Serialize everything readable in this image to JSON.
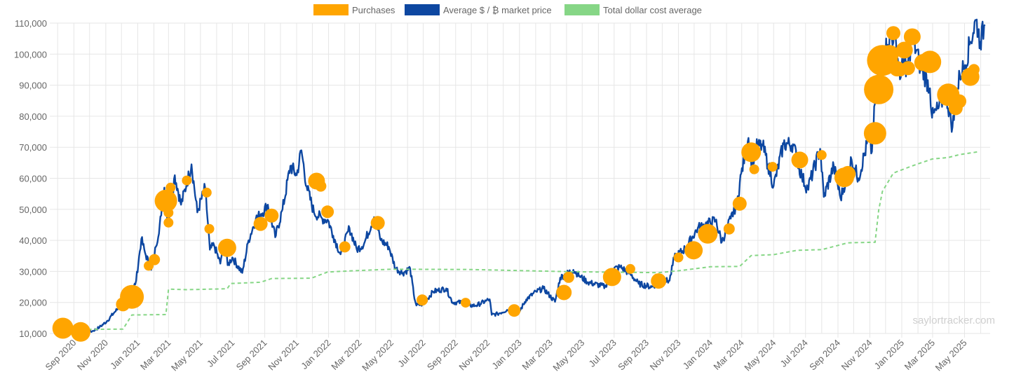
{
  "chart_data": {
    "type": "line",
    "title": "",
    "xlabel": "",
    "ylabel": "",
    "ylim": [
      10000,
      110000
    ],
    "y_ticks": [
      "10,000",
      "20,000",
      "30,000",
      "40,000",
      "50,000",
      "60,000",
      "70,000",
      "80,000",
      "90,000",
      "100,000",
      "110,000"
    ],
    "x_ticks": [
      "Sep 2020",
      "Nov 2020",
      "Jan 2021",
      "Mar 2021",
      "May 2021",
      "Jul 2021",
      "Sep 2021",
      "Nov 2021",
      "Jan 2022",
      "Mar 2022",
      "May 2022",
      "Jul 2022",
      "Sep 2022",
      "Nov 2022",
      "Jan 2023",
      "Mar 2023",
      "May 2023",
      "Jul 2023",
      "Sep 2023",
      "Nov 2023",
      "Jan 2024",
      "Mar 2024",
      "May 2024",
      "Jul 2024",
      "Sep 2024",
      "Nov 2024",
      "Jan 2025",
      "Mar 2025",
      "May 2025"
    ],
    "grid": true,
    "legend_position": "top",
    "watermark": "saylortracker.com",
    "colors": {
      "purchases": "#FFA500",
      "market_price": "#0d47a1",
      "cost_average": "#86d686",
      "grid": "#e6e6e6"
    },
    "legend": [
      {
        "key": "purchases",
        "label": "Purchases"
      },
      {
        "key": "market_price",
        "label": "Average $ / ₿ market price"
      },
      {
        "key": "cost_average",
        "label": "Total dollar cost average"
      }
    ],
    "series": [
      {
        "name": "Average $ / ₿ market price",
        "points": [
          [
            "2020-08-11",
            11500
          ],
          [
            "2020-08-25",
            11600
          ],
          [
            "2020-09-08",
            10300
          ],
          [
            "2020-09-22",
            10500
          ],
          [
            "2020-10-06",
            10700
          ],
          [
            "2020-10-20",
            12000
          ],
          [
            "2020-11-03",
            13900
          ],
          [
            "2020-11-17",
            16700
          ],
          [
            "2020-12-01",
            19200
          ],
          [
            "2020-12-15",
            19400
          ],
          [
            "2020-12-22",
            23500
          ],
          [
            "2020-12-29",
            27000
          ],
          [
            "2021-01-08",
            40500
          ],
          [
            "2021-01-15",
            36000
          ],
          [
            "2021-01-27",
            30500
          ],
          [
            "2021-02-05",
            38000
          ],
          [
            "2021-02-15",
            48000
          ],
          [
            "2021-02-21",
            57000
          ],
          [
            "2021-02-28",
            45500
          ],
          [
            "2021-03-13",
            61000
          ],
          [
            "2021-03-25",
            51500
          ],
          [
            "2021-04-05",
            58500
          ],
          [
            "2021-04-14",
            64500
          ],
          [
            "2021-04-25",
            49000
          ],
          [
            "2021-05-10",
            57000
          ],
          [
            "2021-05-19",
            37000
          ],
          [
            "2021-05-27",
            38500
          ],
          [
            "2021-06-08",
            32500
          ],
          [
            "2021-06-15",
            40000
          ],
          [
            "2021-06-22",
            32000
          ],
          [
            "2021-07-01",
            34500
          ],
          [
            "2021-07-20",
            29500
          ],
          [
            "2021-08-01",
            40000
          ],
          [
            "2021-08-15",
            47000
          ],
          [
            "2021-08-25",
            48500
          ],
          [
            "2021-09-07",
            51500
          ],
          [
            "2021-09-21",
            41000
          ],
          [
            "2021-10-05",
            50000
          ],
          [
            "2021-10-20",
            64000
          ],
          [
            "2021-11-01",
            61000
          ],
          [
            "2021-11-10",
            69000
          ],
          [
            "2021-11-20",
            57500
          ],
          [
            "2021-12-04",
            49000
          ],
          [
            "2021-12-20",
            47000
          ],
          [
            "2021-12-31",
            46500
          ],
          [
            "2022-01-10",
            41500
          ],
          [
            "2022-01-24",
            35500
          ],
          [
            "2022-02-10",
            44000
          ],
          [
            "2022-02-24",
            37000
          ],
          [
            "2022-03-10",
            39000
          ],
          [
            "2022-03-29",
            47500
          ],
          [
            "2022-04-11",
            40000
          ],
          [
            "2022-04-26",
            38000
          ],
          [
            "2022-05-09",
            31000
          ],
          [
            "2022-05-23",
            29500
          ],
          [
            "2022-06-06",
            31000
          ],
          [
            "2022-06-13",
            22500
          ],
          [
            "2022-06-18",
            19000
          ],
          [
            "2022-07-01",
            19500
          ],
          [
            "2022-07-20",
            23500
          ],
          [
            "2022-08-14",
            24500
          ],
          [
            "2022-08-26",
            20000
          ],
          [
            "2022-09-13",
            20000
          ],
          [
            "2022-09-20",
            19000
          ],
          [
            "2022-10-10",
            19000
          ],
          [
            "2022-10-29",
            20500
          ],
          [
            "2022-11-05",
            21000
          ],
          [
            "2022-11-09",
            16000
          ],
          [
            "2022-11-20",
            16300
          ],
          [
            "2022-12-14",
            18000
          ],
          [
            "2022-12-30",
            16500
          ],
          [
            "2023-01-14",
            21000
          ],
          [
            "2023-02-02",
            23500
          ],
          [
            "2023-02-16",
            24500
          ],
          [
            "2023-03-10",
            20200
          ],
          [
            "2023-03-20",
            28000
          ],
          [
            "2023-04-14",
            30500
          ],
          [
            "2023-04-26",
            28500
          ],
          [
            "2023-05-12",
            26500
          ],
          [
            "2023-06-15",
            25000
          ],
          [
            "2023-06-23",
            30500
          ],
          [
            "2023-07-13",
            31400
          ],
          [
            "2023-08-01",
            29200
          ],
          [
            "2023-08-17",
            26000
          ],
          [
            "2023-09-11",
            25000
          ],
          [
            "2023-09-30",
            27000
          ],
          [
            "2023-10-15",
            27000
          ],
          [
            "2023-10-24",
            34500
          ],
          [
            "2023-11-15",
            37500
          ],
          [
            "2023-12-08",
            44000
          ],
          [
            "2024-01-11",
            46500
          ],
          [
            "2024-01-23",
            39500
          ],
          [
            "2024-02-09",
            47000
          ],
          [
            "2024-02-21",
            52000
          ],
          [
            "2024-02-29",
            61500
          ],
          [
            "2024-03-14",
            73000
          ],
          [
            "2024-03-20",
            62500
          ],
          [
            "2024-03-27",
            70000
          ],
          [
            "2024-04-10",
            70500
          ],
          [
            "2024-04-20",
            64500
          ],
          [
            "2024-05-01",
            57500
          ],
          [
            "2024-05-20",
            71000
          ],
          [
            "2024-06-07",
            71000
          ],
          [
            "2024-06-24",
            60500
          ],
          [
            "2024-07-05",
            56500
          ],
          [
            "2024-07-29",
            69500
          ],
          [
            "2024-08-05",
            54000
          ],
          [
            "2024-08-24",
            64000
          ],
          [
            "2024-09-06",
            53500
          ],
          [
            "2024-09-27",
            66000
          ],
          [
            "2024-10-10",
            60000
          ],
          [
            "2024-10-29",
            72500
          ],
          [
            "2024-11-05",
            68500
          ],
          [
            "2024-11-12",
            88000
          ],
          [
            "2024-11-22",
            99000
          ],
          [
            "2024-12-05",
            103000
          ],
          [
            "2024-12-17",
            106500
          ],
          [
            "2024-12-30",
            92500
          ],
          [
            "2025-01-07",
            101500
          ],
          [
            "2025-01-09",
            92800
          ],
          [
            "2025-01-21",
            106000
          ],
          [
            "2025-02-03",
            97500
          ],
          [
            "2025-02-24",
            89000
          ],
          [
            "2025-02-28",
            79500
          ],
          [
            "2025-03-12",
            82500
          ],
          [
            "2025-03-26",
            87500
          ],
          [
            "2025-04-08",
            76500
          ],
          [
            "2025-04-22",
            93500
          ],
          [
            "2025-05-02",
            96500
          ],
          [
            "2025-05-12",
            104000
          ],
          [
            "2025-05-23",
            111000
          ],
          [
            "2025-05-31",
            104000
          ],
          [
            "2025-06-09",
            109500
          ]
        ]
      },
      {
        "name": "Total dollar cost average",
        "points": [
          [
            "2020-08-11",
            11650
          ],
          [
            "2020-09-14",
            11300
          ],
          [
            "2020-12-04",
            11400
          ],
          [
            "2020-12-21",
            15950
          ],
          [
            "2021-02-24",
            16100
          ],
          [
            "2021-03-01",
            24300
          ],
          [
            "2021-04-05",
            24100
          ],
          [
            "2021-06-21",
            24400
          ],
          [
            "2021-06-28",
            26100
          ],
          [
            "2021-08-24",
            26500
          ],
          [
            "2021-09-14",
            27700
          ],
          [
            "2021-11-29",
            27800
          ],
          [
            "2021-12-30",
            29800
          ],
          [
            "2022-03-01",
            30300
          ],
          [
            "2022-05-01",
            30700
          ],
          [
            "2022-10-01",
            30600
          ],
          [
            "2023-04-05",
            29900
          ],
          [
            "2023-09-24",
            29600
          ],
          [
            "2023-11-01",
            30200
          ],
          [
            "2024-01-01",
            31500
          ],
          [
            "2024-02-26",
            31600
          ],
          [
            "2024-03-19",
            35100
          ],
          [
            "2024-05-01",
            35400
          ],
          [
            "2024-06-15",
            36800
          ],
          [
            "2024-08-01",
            37000
          ],
          [
            "2024-09-20",
            39200
          ],
          [
            "2024-11-11",
            39400
          ],
          [
            "2024-11-18",
            49800
          ],
          [
            "2024-11-25",
            55800
          ],
          [
            "2024-12-16",
            61700
          ],
          [
            "2025-01-21",
            64000
          ],
          [
            "2025-02-28",
            66200
          ],
          [
            "2025-03-31",
            66700
          ],
          [
            "2025-04-21",
            67600
          ],
          [
            "2025-05-26",
            68500
          ]
        ]
      }
    ],
    "purchases": [
      {
        "date": "2020-08-11",
        "price": 11700,
        "size": 15
      },
      {
        "date": "2020-09-14",
        "price": 10500,
        "size": 14
      },
      {
        "date": "2020-12-04",
        "price": 19400,
        "size": 10
      },
      {
        "date": "2020-12-21",
        "price": 21800,
        "size": 17
      },
      {
        "date": "2021-01-22",
        "price": 31800,
        "size": 7
      },
      {
        "date": "2021-02-02",
        "price": 33800,
        "size": 8
      },
      {
        "date": "2021-02-24",
        "price": 52700,
        "size": 16
      },
      {
        "date": "2021-03-01",
        "price": 48900,
        "size": 7
      },
      {
        "date": "2021-03-01",
        "price": 45700,
        "size": 7
      },
      {
        "date": "2021-03-05",
        "price": 57000,
        "size": 7
      },
      {
        "date": "2021-04-05",
        "price": 59300,
        "size": 7
      },
      {
        "date": "2021-05-13",
        "price": 55400,
        "size": 7
      },
      {
        "date": "2021-05-18",
        "price": 43700,
        "size": 7
      },
      {
        "date": "2021-06-21",
        "price": 37600,
        "size": 13
      },
      {
        "date": "2021-08-24",
        "price": 45300,
        "size": 10
      },
      {
        "date": "2021-09-14",
        "price": 48000,
        "size": 10
      },
      {
        "date": "2021-12-09",
        "price": 59100,
        "size": 12
      },
      {
        "date": "2021-12-17",
        "price": 57500,
        "size": 8
      },
      {
        "date": "2021-12-30",
        "price": 49200,
        "size": 9
      },
      {
        "date": "2022-02-01",
        "price": 37900,
        "size": 8
      },
      {
        "date": "2022-04-05",
        "price": 45600,
        "size": 10
      },
      {
        "date": "2022-06-29",
        "price": 20800,
        "size": 8
      },
      {
        "date": "2022-09-20",
        "price": 19900,
        "size": 7
      },
      {
        "date": "2022-12-22",
        "price": 17400,
        "size": 9
      },
      {
        "date": "2023-03-27",
        "price": 23200,
        "size": 11
      },
      {
        "date": "2023-04-05",
        "price": 28100,
        "size": 8
      },
      {
        "date": "2023-06-27",
        "price": 28200,
        "size": 13
      },
      {
        "date": "2023-08-01",
        "price": 30800,
        "size": 7
      },
      {
        "date": "2023-09-24",
        "price": 26900,
        "size": 11
      },
      {
        "date": "2023-11-01",
        "price": 34500,
        "size": 7
      },
      {
        "date": "2023-11-30",
        "price": 36800,
        "size": 13
      },
      {
        "date": "2023-12-27",
        "price": 42100,
        "size": 14
      },
      {
        "date": "2024-02-06",
        "price": 43700,
        "size": 8
      },
      {
        "date": "2024-02-26",
        "price": 51800,
        "size": 10
      },
      {
        "date": "2024-03-19",
        "price": 68400,
        "size": 14
      },
      {
        "date": "2024-03-25",
        "price": 62900,
        "size": 7
      },
      {
        "date": "2024-04-29",
        "price": 63700,
        "size": 7
      },
      {
        "date": "2024-06-20",
        "price": 65900,
        "size": 12
      },
      {
        "date": "2024-08-01",
        "price": 67500,
        "size": 7
      },
      {
        "date": "2024-09-13",
        "price": 60300,
        "size": 14
      },
      {
        "date": "2024-09-20",
        "price": 61500,
        "size": 11
      },
      {
        "date": "2024-11-11",
        "price": 74500,
        "size": 16
      },
      {
        "date": "2024-11-18",
        "price": 88600,
        "size": 21
      },
      {
        "date": "2024-11-25",
        "price": 98000,
        "size": 22
      },
      {
        "date": "2024-12-02",
        "price": 99700,
        "size": 12
      },
      {
        "date": "2024-12-09",
        "price": 100000,
        "size": 13
      },
      {
        "date": "2024-12-16",
        "price": 106800,
        "size": 10
      },
      {
        "date": "2024-12-23",
        "price": 95300,
        "size": 11
      },
      {
        "date": "2024-12-30",
        "price": 94400,
        "size": 7
      },
      {
        "date": "2025-01-06",
        "price": 101300,
        "size": 12
      },
      {
        "date": "2025-01-13",
        "price": 95500,
        "size": 10
      },
      {
        "date": "2025-01-21",
        "price": 105600,
        "size": 12
      },
      {
        "date": "2025-02-10",
        "price": 97300,
        "size": 12
      },
      {
        "date": "2025-02-24",
        "price": 97500,
        "size": 16
      },
      {
        "date": "2025-03-31",
        "price": 86900,
        "size": 16
      },
      {
        "date": "2025-04-14",
        "price": 82600,
        "size": 10
      },
      {
        "date": "2025-04-21",
        "price": 84800,
        "size": 10
      },
      {
        "date": "2025-05-12",
        "price": 92700,
        "size": 13
      },
      {
        "date": "2025-05-19",
        "price": 95000,
        "size": 8
      }
    ]
  }
}
